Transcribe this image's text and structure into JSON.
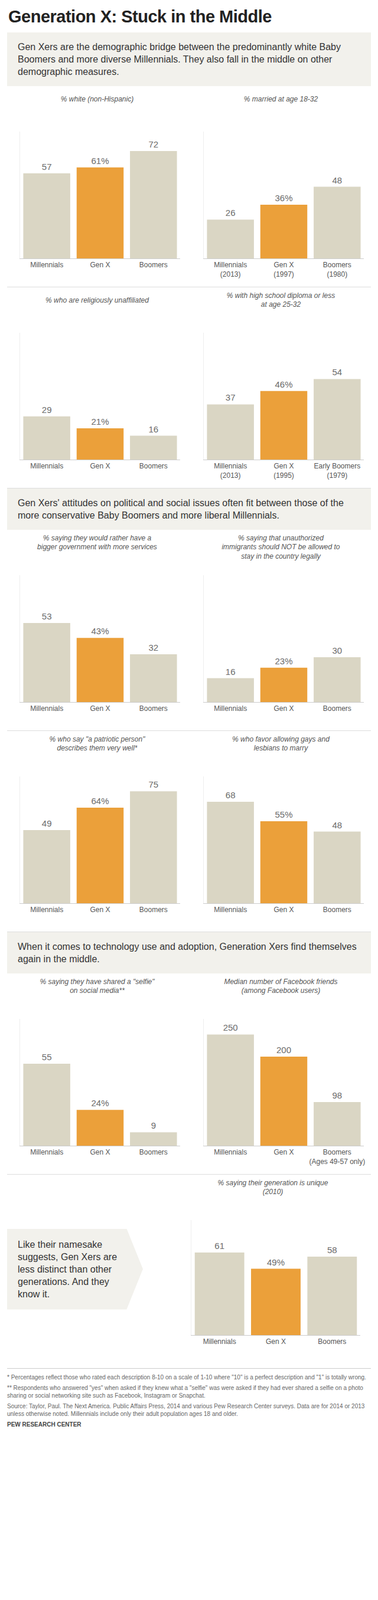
{
  "title": "Generation X: Stuck in the Middle",
  "sections": [
    "Gen Xers are the demographic bridge between the predominantly white Baby Boomers and more diverse Millennials. They also fall in the middle on other demographic measures.",
    "Gen Xers' attitudes on political and social issues often fit between those of the more conservative Baby Boomers and more liberal Millennials.",
    "When it comes to technology use and adoption, Generation Xers find themselves again in the middle."
  ],
  "callout": "Like their namesake suggests, Gen Xers are less distinct than other generations. And they know it.",
  "notes": [
    "* Percentages reflect those who rated each description 8-10 on a scale of 1-10 where \"10\" is a perfect description and \"1\" is totally wrong.",
    "** Respondents who answered \"yes\" when asked if they knew what a \"selfie\" was were asked if they had ever shared a selfie on a photo sharing or social networking site such as Facebook, Instagram or Snapchat.",
    "Source: Taylor, Paul. The Next America. Public Affairs Press, 2014 and various Pew Research Center surveys. Data are for 2014 or 2013 unless otherwise noted. Millennials include only their adult population ages 18 and older."
  ],
  "credit": "PEW RESEARCH CENTER",
  "chart_data": [
    {
      "type": "bar",
      "title": "% white (non-Hispanic)",
      "categories": [
        "Millennials",
        "Gen X",
        "Boomers"
      ],
      "values": [
        57,
        61,
        72
      ],
      "value_labels": [
        "57",
        "61%",
        "72"
      ],
      "colors": [
        "#dad6c4",
        "#eba03a",
        "#dad6c4"
      ],
      "ylim": [
        0,
        85
      ],
      "data_labels": true,
      "tick_labels": false,
      "grid": false
    },
    {
      "type": "bar",
      "title": "% married at age 18-32",
      "categories": [
        "Millennials (2013)",
        "Gen X (1997)",
        "Boomers (1980)"
      ],
      "values": [
        26,
        36,
        48
      ],
      "value_labels": [
        "26",
        "36%",
        "48"
      ],
      "colors": [
        "#dad6c4",
        "#eba03a",
        "#dad6c4"
      ],
      "ylim": [
        0,
        85
      ],
      "data_labels": true,
      "tick_labels": false,
      "grid": false
    },
    {
      "type": "bar",
      "title": "% who are religiously unaffiliated",
      "categories": [
        "Millennials",
        "Gen X",
        "Boomers"
      ],
      "values": [
        29,
        21,
        16
      ],
      "value_labels": [
        "29",
        "21%",
        "16"
      ],
      "colors": [
        "#dad6c4",
        "#eba03a",
        "#dad6c4"
      ],
      "ylim": [
        0,
        85
      ],
      "data_labels": true,
      "tick_labels": false,
      "grid": false
    },
    {
      "type": "bar",
      "title": "% with high school diploma or less at age 25-32",
      "categories": [
        "Millennials (2013)",
        "Gen X (1995)",
        "Early Boomers (1979)"
      ],
      "values": [
        37,
        46,
        54
      ],
      "value_labels": [
        "37",
        "46%",
        "54"
      ],
      "colors": [
        "#dad6c4",
        "#eba03a",
        "#dad6c4"
      ],
      "ylim": [
        0,
        85
      ],
      "data_labels": true,
      "tick_labels": false,
      "grid": false
    },
    {
      "type": "bar",
      "title": "% saying they would rather have a bigger government with more services",
      "categories": [
        "Millennials",
        "Gen X",
        "Boomers"
      ],
      "values": [
        53,
        43,
        32
      ],
      "value_labels": [
        "53",
        "43%",
        "32"
      ],
      "colors": [
        "#dad6c4",
        "#eba03a",
        "#dad6c4"
      ],
      "ylim": [
        0,
        85
      ],
      "data_labels": true,
      "tick_labels": false,
      "grid": false
    },
    {
      "type": "bar",
      "title": "% saying that unauthorized immigrants should NOT be allowed to stay in the country legally",
      "categories": [
        "Millennials",
        "Gen X",
        "Boomers"
      ],
      "values": [
        16,
        23,
        30
      ],
      "value_labels": [
        "16",
        "23%",
        "30"
      ],
      "colors": [
        "#dad6c4",
        "#eba03a",
        "#dad6c4"
      ],
      "ylim": [
        0,
        85
      ],
      "data_labels": true,
      "tick_labels": false,
      "grid": false
    },
    {
      "type": "bar",
      "title": "% who say \"a patriotic person\" describes them very well*",
      "categories": [
        "Millennials",
        "Gen X",
        "Boomers"
      ],
      "values": [
        49,
        64,
        75
      ],
      "value_labels": [
        "49",
        "64%",
        "75"
      ],
      "colors": [
        "#dad6c4",
        "#eba03a",
        "#dad6c4"
      ],
      "ylim": [
        0,
        85
      ],
      "data_labels": true,
      "tick_labels": false,
      "grid": false
    },
    {
      "type": "bar",
      "title": "% who favor allowing gays and lesbians to marry",
      "categories": [
        "Millennials",
        "Gen X",
        "Boomers"
      ],
      "values": [
        68,
        55,
        48
      ],
      "value_labels": [
        "68",
        "55%",
        "48"
      ],
      "colors": [
        "#dad6c4",
        "#eba03a",
        "#dad6c4"
      ],
      "ylim": [
        0,
        85
      ],
      "data_labels": true,
      "tick_labels": false,
      "grid": false
    },
    {
      "type": "bar",
      "title": "% saying they have shared a \"selfie\" on social media**",
      "categories": [
        "Millennials",
        "Gen X",
        "Boomers"
      ],
      "values": [
        55,
        24,
        9
      ],
      "value_labels": [
        "55",
        "24%",
        "9"
      ],
      "colors": [
        "#dad6c4",
        "#eba03a",
        "#dad6c4"
      ],
      "ylim": [
        0,
        85
      ],
      "data_labels": true,
      "tick_labels": false,
      "grid": false
    },
    {
      "type": "bar",
      "title": "Median number of Facebook friends (among Facebook users)",
      "categories": [
        "Millennials",
        "Gen X",
        "Boomers (Ages 49-57 only)"
      ],
      "values": [
        250,
        200,
        98
      ],
      "colors": [
        "#dad6c4",
        "#eba03a",
        "#dad6c4"
      ],
      "ylim": [
        0,
        285
      ],
      "data_labels": true,
      "tick_labels": false,
      "grid": false
    },
    {
      "type": "bar",
      "title": "% saying their generation is unique (2010)",
      "categories": [
        "Millennials",
        "Gen X",
        "Boomers"
      ],
      "values": [
        61,
        49,
        58
      ],
      "value_labels": [
        "61",
        "49%",
        "58"
      ],
      "colors": [
        "#dad6c4",
        "#eba03a",
        "#dad6c4"
      ],
      "ylim": [
        0,
        85
      ],
      "data_labels": true,
      "tick_labels": false,
      "grid": false
    }
  ]
}
